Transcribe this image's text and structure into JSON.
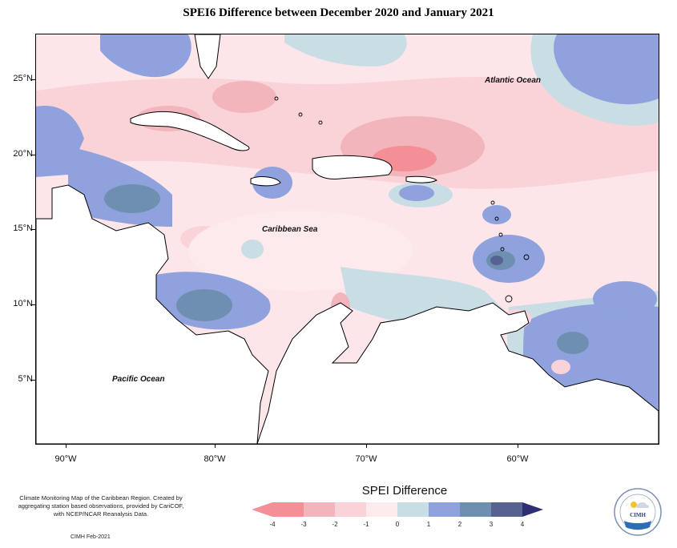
{
  "title": "SPEI6 Difference between December 2020 and January 2021",
  "map": {
    "labels": {
      "atlantic": "Atlantic Ocean",
      "caribbean": "Caribbean Sea",
      "pacific": "Pacific Ocean"
    },
    "lat_ticks": [
      "25°N",
      "20°N",
      "15°N",
      "10°N",
      "5°N"
    ],
    "lon_ticks": [
      "90°W",
      "80°W",
      "70°W",
      "60°W"
    ]
  },
  "legend": {
    "title": "SPEI Difference",
    "ticks": [
      "-4",
      "-3",
      "-2",
      "-1",
      "0",
      "1",
      "2",
      "3",
      "4"
    ],
    "colors": [
      "#f58f96",
      "#f2b5bb",
      "#fad3d9",
      "#fdeaed",
      "#c9dde5",
      "#8fa2dd",
      "#6e8fb0",
      "#56628f",
      "#2e2f72"
    ]
  },
  "footnote": "Climate Monitoring Map of the Caribbean Region. Created by aggregating station based observations, provided by CariCOF, with NCEP/NCAR Reanalysis Data.",
  "credit": "CIMH Feb-2021",
  "logo": {
    "text": "CIMH"
  }
}
